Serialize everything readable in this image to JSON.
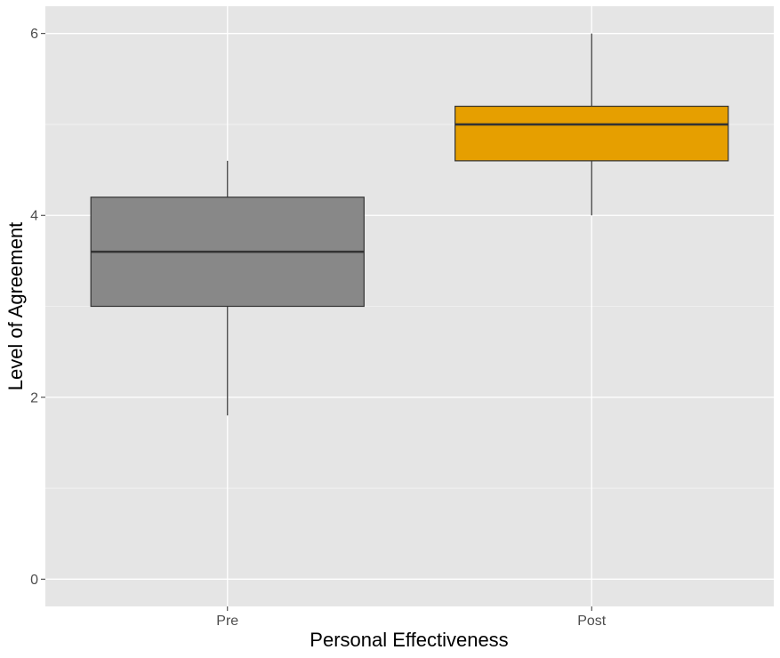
{
  "chart_data": {
    "type": "boxplot",
    "xlabel": "Personal Effectiveness",
    "ylabel": "Level of Agreement",
    "ylim": [
      -0.3,
      6.3
    ],
    "yticks": [
      0,
      2,
      4,
      6
    ],
    "ytick_labels": [
      "0",
      "2",
      "4",
      "6"
    ],
    "grid": true,
    "legend": "none",
    "categories": [
      "Pre",
      "Post"
    ],
    "boxes": [
      {
        "category": "Pre",
        "min": 1.8,
        "q1": 3.0,
        "median": 3.6,
        "q3": 4.2,
        "max": 4.6,
        "color": "#888888"
      },
      {
        "category": "Post",
        "min": 4.0,
        "q1": 4.6,
        "median": 5.0,
        "q3": 5.2,
        "max": 6.0,
        "color": "#E69F00"
      }
    ]
  },
  "colors": {
    "panel_background": "#e5e5e5",
    "grid_major": "#ffffff",
    "box_outline": "#333333"
  }
}
